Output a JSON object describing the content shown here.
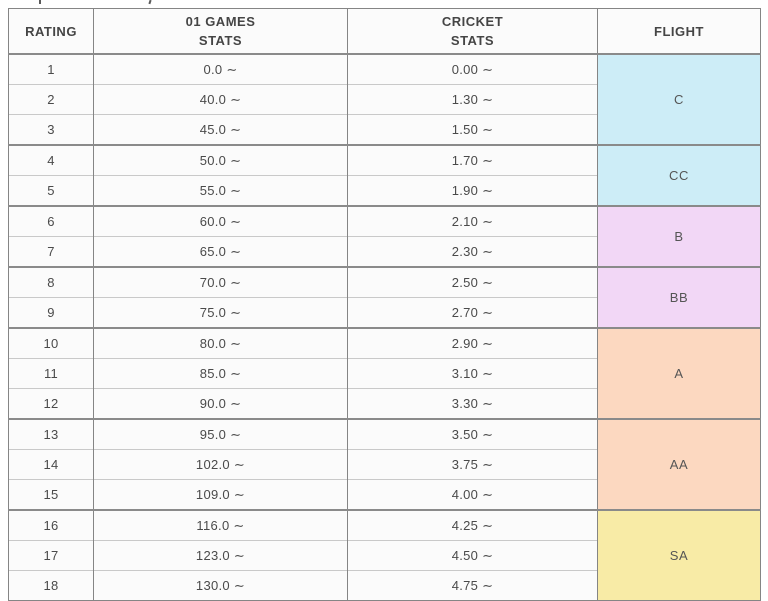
{
  "table": {
    "headers": [
      {
        "label": "RATING"
      },
      {
        "label": "01 GAMES\nSTATS"
      },
      {
        "label": "CRICKET\nSTATS"
      },
      {
        "label": "FLIGHT"
      }
    ],
    "rows": [
      {
        "rating": "1",
        "games": "0.0 ∼",
        "cricket": "0.00 ∼"
      },
      {
        "rating": "2",
        "games": "40.0 ∼",
        "cricket": "1.30 ∼"
      },
      {
        "rating": "3",
        "games": "45.0 ∼",
        "cricket": "1.50 ∼"
      },
      {
        "rating": "4",
        "games": "50.0 ∼",
        "cricket": "1.70 ∼"
      },
      {
        "rating": "5",
        "games": "55.0 ∼",
        "cricket": "1.90 ∼"
      },
      {
        "rating": "6",
        "games": "60.0 ∼",
        "cricket": "2.10 ∼"
      },
      {
        "rating": "7",
        "games": "65.0 ∼",
        "cricket": "2.30 ∼"
      },
      {
        "rating": "8",
        "games": "70.0 ∼",
        "cricket": "2.50 ∼"
      },
      {
        "rating": "9",
        "games": "75.0 ∼",
        "cricket": "2.70 ∼"
      },
      {
        "rating": "10",
        "games": "80.0 ∼",
        "cricket": "2.90 ∼"
      },
      {
        "rating": "11",
        "games": "85.0 ∼",
        "cricket": "3.10 ∼"
      },
      {
        "rating": "12",
        "games": "90.0 ∼",
        "cricket": "3.30 ∼"
      },
      {
        "rating": "13",
        "games": "95.0 ∼",
        "cricket": "3.50 ∼"
      },
      {
        "rating": "14",
        "games": "102.0 ∼",
        "cricket": "3.75 ∼"
      },
      {
        "rating": "15",
        "games": "109.0 ∼",
        "cricket": "4.00 ∼"
      },
      {
        "rating": "16",
        "games": "116.0 ∼",
        "cricket": "4.25 ∼"
      },
      {
        "rating": "17",
        "games": "123.0 ∼",
        "cricket": "4.50 ∼"
      },
      {
        "rating": "18",
        "games": "130.0 ∼",
        "cricket": "4.75 ∼"
      }
    ],
    "flight_groups": [
      {
        "label": "C",
        "start": 0,
        "span": 3,
        "color": "#cdedf7"
      },
      {
        "label": "CC",
        "start": 3,
        "span": 2,
        "color": "#cdedf7"
      },
      {
        "label": "B",
        "start": 5,
        "span": 2,
        "color": "#f2d7f6"
      },
      {
        "label": "BB",
        "start": 7,
        "span": 2,
        "color": "#f2d7f6"
      },
      {
        "label": "A",
        "start": 9,
        "span": 3,
        "color": "#fcd8c0"
      },
      {
        "label": "AA",
        "start": 12,
        "span": 3,
        "color": "#fcd8c0"
      },
      {
        "label": "SA",
        "start": 15,
        "span": 3,
        "color": "#f8eba6"
      }
    ],
    "colors": {
      "cell_background": "#fbfbfb",
      "outer_border": "#858585",
      "group_border": "#8a8a8a",
      "row_border": "#c9c9c9",
      "text": "#4a4a4a"
    }
  }
}
